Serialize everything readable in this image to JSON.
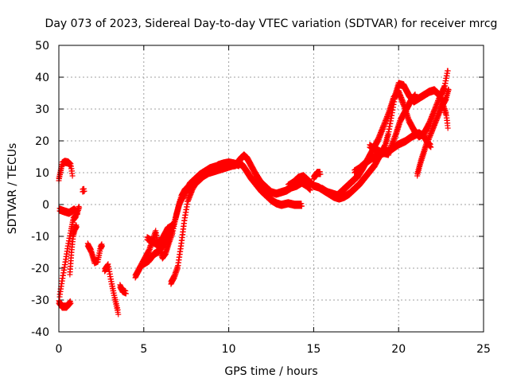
{
  "chart_data": {
    "type": "scatter",
    "title": "Day 073 of 2023, Sidereal Day-to-day VTEC variation (SDTVAR) for receiver mrcg",
    "xlabel": "GPS time / hours",
    "ylabel": "SDTVAR / TECUs",
    "xlim": [
      0,
      25
    ],
    "ylim": [
      -40,
      50
    ],
    "xticks": [
      0,
      5,
      10,
      15,
      20,
      25
    ],
    "yticks": [
      -40,
      -30,
      -20,
      -10,
      0,
      10,
      20,
      30,
      40,
      50
    ],
    "grid": true,
    "marker": "+",
    "color": "#ff0000",
    "series": [
      {
        "name": "trace-a",
        "points": [
          [
            0.0,
            7.5
          ],
          [
            0.1,
            10
          ],
          [
            0.2,
            12.5
          ],
          [
            0.35,
            13
          ],
          [
            0.55,
            12.8
          ],
          [
            0.7,
            12
          ],
          [
            0.8,
            9
          ]
        ]
      },
      {
        "name": "trace-b",
        "points": [
          [
            0.05,
            -29
          ],
          [
            0.2,
            -24
          ],
          [
            0.4,
            -18
          ],
          [
            0.55,
            -13
          ],
          [
            0.7,
            -9
          ],
          [
            0.85,
            -5
          ],
          [
            1.0,
            -4
          ],
          [
            1.2,
            -1
          ]
        ]
      },
      {
        "name": "trace-c",
        "points": [
          [
            0.05,
            -2
          ],
          [
            0.3,
            -2.5
          ],
          [
            0.6,
            -3
          ],
          [
            0.9,
            -2
          ],
          [
            1.1,
            -3
          ]
        ]
      },
      {
        "name": "trace-d",
        "points": [
          [
            0.0,
            -31
          ],
          [
            0.2,
            -32.5
          ],
          [
            0.45,
            -32.5
          ],
          [
            0.7,
            -31
          ]
        ]
      },
      {
        "name": "trace-e",
        "points": [
          [
            0.65,
            -22
          ],
          [
            0.75,
            -15
          ],
          [
            0.85,
            -10
          ],
          [
            0.95,
            -8
          ],
          [
            1.05,
            -7
          ]
        ]
      },
      {
        "name": "trace-f",
        "points": [
          [
            1.4,
            4
          ],
          [
            1.5,
            4.2
          ]
        ]
      },
      {
        "name": "trace-g",
        "points": [
          [
            1.7,
            -13
          ],
          [
            1.9,
            -15
          ],
          [
            2.1,
            -18.5
          ],
          [
            2.3,
            -18
          ],
          [
            2.45,
            -14
          ],
          [
            2.55,
            -13
          ]
        ]
      },
      {
        "name": "trace-h",
        "points": [
          [
            2.7,
            -21
          ],
          [
            2.9,
            -19.5
          ],
          [
            3.1,
            -25
          ],
          [
            3.3,
            -30
          ],
          [
            3.5,
            -34.5
          ]
        ]
      },
      {
        "name": "trace-i",
        "points": [
          [
            3.6,
            -26
          ],
          [
            3.75,
            -27.5
          ],
          [
            3.95,
            -28
          ]
        ]
      },
      {
        "name": "trace-j",
        "points": [
          [
            4.5,
            -23
          ],
          [
            4.7,
            -21
          ],
          [
            4.9,
            -19
          ],
          [
            5.1,
            -17
          ],
          [
            5.3,
            -15
          ],
          [
            5.5,
            -12
          ],
          [
            5.7,
            -9
          ],
          [
            5.9,
            -14
          ],
          [
            6.1,
            -17
          ],
          [
            6.3,
            -15.5
          ],
          [
            6.5,
            -12
          ],
          [
            6.7,
            -9
          ],
          [
            6.9,
            -4
          ],
          [
            7.1,
            0
          ],
          [
            7.4,
            3
          ],
          [
            7.7,
            6
          ],
          [
            8.0,
            7.5
          ],
          [
            8.3,
            9
          ],
          [
            8.6,
            10
          ],
          [
            8.9,
            11
          ],
          [
            9.2,
            11.5
          ],
          [
            9.5,
            11.5
          ],
          [
            9.8,
            11.5
          ],
          [
            10.1,
            11.8
          ],
          [
            10.4,
            12
          ],
          [
            10.7,
            14
          ],
          [
            10.9,
            15
          ],
          [
            11.1,
            14
          ],
          [
            11.3,
            12
          ],
          [
            11.6,
            9
          ],
          [
            11.9,
            6.5
          ],
          [
            12.2,
            5
          ],
          [
            12.5,
            3.5
          ],
          [
            12.8,
            3
          ],
          [
            13.1,
            3.5
          ],
          [
            13.4,
            4
          ],
          [
            13.7,
            5
          ],
          [
            14.0,
            5.5
          ],
          [
            14.3,
            6.5
          ],
          [
            14.6,
            5.5
          ],
          [
            14.8,
            4.5
          ]
        ]
      },
      {
        "name": "trace-k",
        "points": [
          [
            5.0,
            -19
          ],
          [
            5.3,
            -18
          ],
          [
            5.6,
            -16
          ],
          [
            5.9,
            -15
          ],
          [
            6.2,
            -13
          ],
          [
            6.5,
            -10
          ],
          [
            6.8,
            -6
          ],
          [
            7.0,
            -2
          ],
          [
            7.2,
            2
          ],
          [
            7.4,
            4
          ],
          [
            7.6,
            5
          ],
          [
            7.9,
            6
          ],
          [
            8.2,
            7
          ],
          [
            8.5,
            8.5
          ],
          [
            8.8,
            9.5
          ],
          [
            9.1,
            10
          ],
          [
            9.4,
            10.5
          ],
          [
            9.7,
            11
          ],
          [
            10.0,
            11.5
          ],
          [
            10.3,
            12
          ],
          [
            10.6,
            12.5
          ],
          [
            10.8,
            12
          ],
          [
            11.0,
            10.5
          ],
          [
            11.3,
            8
          ],
          [
            11.6,
            6
          ],
          [
            11.9,
            4
          ],
          [
            12.2,
            2.5
          ],
          [
            12.5,
            1
          ],
          [
            12.8,
            0
          ],
          [
            13.1,
            -0.5
          ],
          [
            13.5,
            0
          ],
          [
            13.9,
            -0.5
          ],
          [
            14.3,
            -0.5
          ]
        ]
      },
      {
        "name": "trace-l",
        "points": [
          [
            6.6,
            -25
          ],
          [
            6.8,
            -23
          ],
          [
            7.0,
            -20
          ],
          [
            7.2,
            -13
          ],
          [
            7.4,
            -5
          ],
          [
            7.6,
            1
          ],
          [
            7.9,
            5
          ],
          [
            8.2,
            7.5
          ],
          [
            8.5,
            9
          ],
          [
            8.8,
            10
          ],
          [
            9.1,
            11
          ],
          [
            9.4,
            12
          ],
          [
            9.7,
            12.5
          ],
          [
            10.0,
            12.8
          ],
          [
            10.3,
            12.5
          ],
          [
            10.6,
            12
          ]
        ]
      },
      {
        "name": "trace-m",
        "points": [
          [
            5.2,
            -11
          ],
          [
            5.5,
            -12
          ],
          [
            5.8,
            -13
          ],
          [
            6.1,
            -11
          ],
          [
            6.4,
            -8
          ],
          [
            6.7,
            -7
          ]
        ]
      },
      {
        "name": "trace-n",
        "points": [
          [
            13.5,
            5.5
          ],
          [
            13.8,
            6.5
          ],
          [
            14.1,
            8
          ],
          [
            14.4,
            8.5
          ],
          [
            14.7,
            7
          ],
          [
            15.0,
            5.5
          ],
          [
            15.3,
            5
          ],
          [
            15.6,
            4
          ],
          [
            15.9,
            3
          ],
          [
            16.2,
            2
          ],
          [
            16.5,
            1.5
          ],
          [
            16.8,
            2
          ],
          [
            17.1,
            3
          ],
          [
            17.4,
            4.5
          ],
          [
            17.7,
            6
          ],
          [
            18.0,
            8
          ],
          [
            18.3,
            10
          ],
          [
            18.6,
            12
          ],
          [
            18.9,
            15
          ],
          [
            19.2,
            18
          ],
          [
            19.4,
            22
          ],
          [
            19.6,
            28
          ],
          [
            19.8,
            34
          ],
          [
            20.0,
            37.5
          ],
          [
            20.3,
            37
          ],
          [
            20.6,
            34
          ],
          [
            20.9,
            32
          ],
          [
            21.2,
            33
          ],
          [
            21.5,
            34
          ],
          [
            21.8,
            35
          ],
          [
            22.1,
            35.5
          ],
          [
            22.4,
            34
          ],
          [
            22.6,
            31
          ],
          [
            22.8,
            28
          ],
          [
            22.9,
            24
          ]
        ]
      },
      {
        "name": "trace-o",
        "points": [
          [
            15.0,
            8
          ],
          [
            15.2,
            9.5
          ],
          [
            15.4,
            9.5
          ]
        ]
      },
      {
        "name": "trace-p",
        "points": [
          [
            15.5,
            4.5
          ],
          [
            15.8,
            3.5
          ],
          [
            16.1,
            3
          ],
          [
            16.4,
            2.5
          ],
          [
            16.7,
            4
          ],
          [
            17.0,
            5.5
          ],
          [
            17.3,
            7
          ],
          [
            17.6,
            8.5
          ],
          [
            17.9,
            11
          ],
          [
            18.2,
            14
          ],
          [
            18.5,
            17
          ],
          [
            18.8,
            20
          ],
          [
            19.1,
            24
          ],
          [
            19.4,
            28
          ],
          [
            19.7,
            33
          ],
          [
            20.0,
            35
          ],
          [
            20.3,
            31
          ],
          [
            20.6,
            26
          ],
          [
            20.9,
            23
          ],
          [
            21.2,
            21
          ],
          [
            21.5,
            22
          ],
          [
            21.8,
            25
          ],
          [
            22.1,
            29
          ],
          [
            22.4,
            33
          ],
          [
            22.7,
            36.5
          ],
          [
            22.9,
            42
          ]
        ]
      },
      {
        "name": "trace-q",
        "points": [
          [
            17.4,
            10
          ],
          [
            17.7,
            11
          ],
          [
            18.0,
            12.5
          ],
          [
            18.4,
            14
          ],
          [
            18.8,
            15
          ],
          [
            19.2,
            16
          ],
          [
            19.6,
            17
          ],
          [
            20.0,
            18.5
          ],
          [
            20.4,
            19.5
          ],
          [
            20.8,
            21
          ],
          [
            21.2,
            22
          ],
          [
            21.5,
            21
          ],
          [
            21.7,
            19
          ],
          [
            21.9,
            18
          ]
        ]
      },
      {
        "name": "trace-r",
        "points": [
          [
            18.3,
            18
          ],
          [
            18.6,
            17
          ],
          [
            19.0,
            16
          ],
          [
            19.4,
            15.5
          ],
          [
            19.8,
            21
          ],
          [
            20.1,
            26
          ],
          [
            20.4,
            29
          ],
          [
            20.7,
            32
          ],
          [
            21.0,
            34
          ]
        ]
      },
      {
        "name": "trace-s",
        "points": [
          [
            21.1,
            9
          ],
          [
            21.3,
            13
          ],
          [
            21.6,
            18
          ],
          [
            21.9,
            22
          ],
          [
            22.2,
            26
          ],
          [
            22.5,
            30
          ],
          [
            22.8,
            33
          ],
          [
            22.95,
            36
          ]
        ]
      }
    ]
  }
}
